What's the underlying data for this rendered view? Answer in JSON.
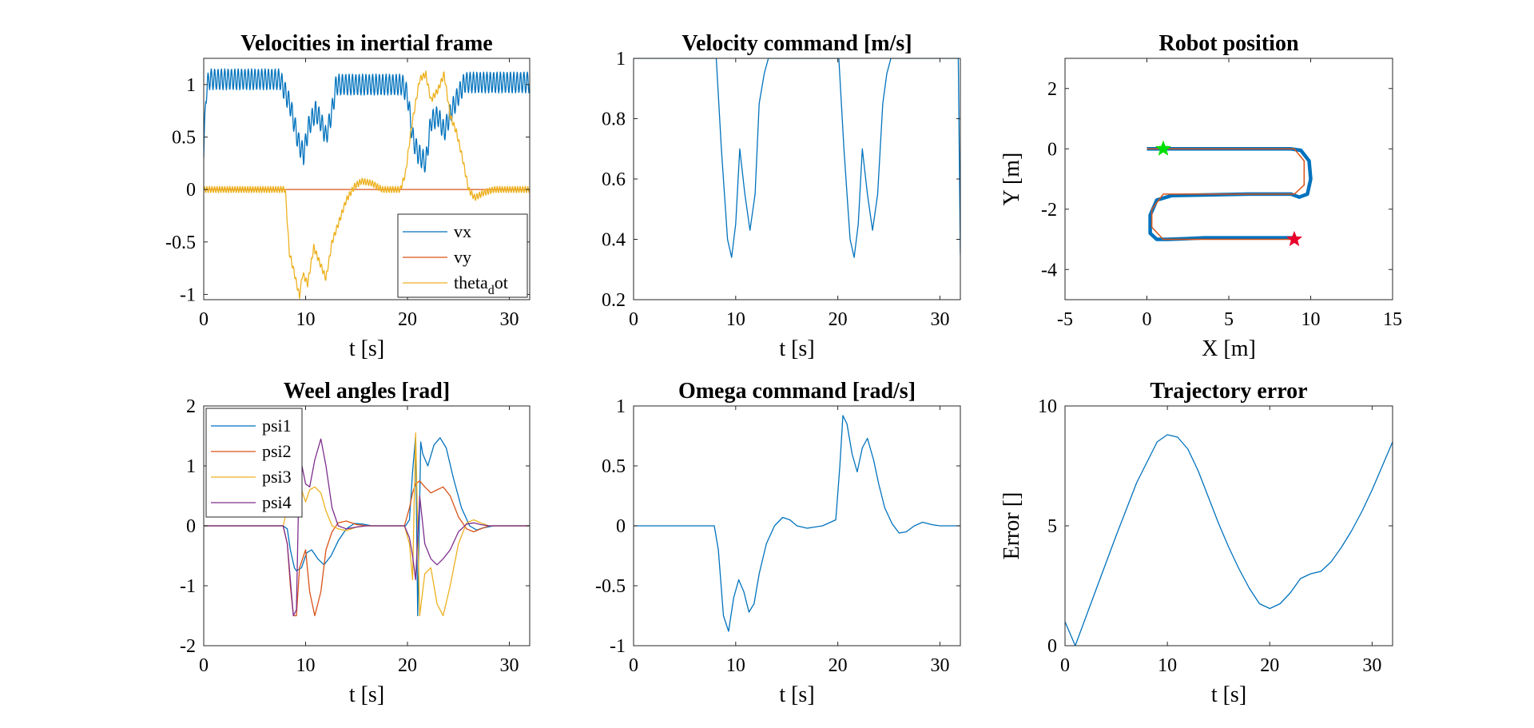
{
  "chart_data": [
    {
      "type": "line",
      "title": "Velocities in inertial frame",
      "xlabel": "t [s]",
      "ylabel": "",
      "xlim": [
        0,
        32
      ],
      "ylim": [
        -1.05,
        1.25
      ],
      "xticks": [
        0,
        10,
        20,
        30
      ],
      "yticks": [
        -1,
        -0.5,
        0,
        0.5,
        1
      ],
      "legend": "bottom-right",
      "colors": {
        "s0": "#0072BD",
        "s1": "#D95319",
        "s2": "#EDB120"
      },
      "series": [
        {
          "name": "vx",
          "legend_label": {
            "main": "vx",
            "sub": ""
          },
          "x": [
            0,
            0.2,
            0.5,
            7.5,
            8.5,
            9.3,
            9.8,
            10.3,
            11,
            11.5,
            12,
            12.6,
            13,
            19.5,
            20,
            20.5,
            21,
            21.8,
            22.3,
            23,
            23.6,
            24.2,
            25,
            25.6,
            32
          ],
          "y": [
            0.3,
            0.9,
            1.05,
            1.05,
            0.8,
            0.45,
            0.33,
            0.6,
            0.75,
            0.65,
            0.5,
            0.75,
            1.0,
            1.0,
            0.9,
            0.5,
            0.35,
            0.25,
            0.65,
            0.7,
            0.55,
            0.72,
            0.9,
            1.02,
            1.02
          ],
          "osc": {
            "amp": 0.1,
            "period": 0.33
          }
        },
        {
          "name": "vy",
          "legend_label": {
            "main": "vy",
            "sub": ""
          },
          "x": [
            0,
            32
          ],
          "y": [
            0,
            0
          ]
        },
        {
          "name": "theta_dot",
          "legend_label": {
            "main": "theta",
            "sub": "d",
            "tail": "ot"
          },
          "x": [
            0,
            8,
            8.4,
            8.9,
            9.4,
            9.7,
            10.2,
            10.8,
            11.4,
            12,
            12.6,
            13.3,
            14,
            14.8,
            15.5,
            16.5,
            17.5,
            19.3,
            19.8,
            20.4,
            21.2,
            21.8,
            22.3,
            23,
            23.6,
            24.2,
            24.8,
            25.4,
            26,
            26.6,
            27.5,
            28.5,
            32
          ],
          "y": [
            0,
            0,
            -0.6,
            -0.8,
            -1.02,
            -0.8,
            -0.9,
            -0.55,
            -0.7,
            -0.85,
            -0.5,
            -0.3,
            -0.1,
            0.03,
            0.08,
            0.06,
            0.0,
            0.0,
            0.15,
            0.6,
            1.05,
            1.1,
            0.85,
            0.95,
            1.1,
            0.7,
            0.55,
            0.3,
            0.0,
            -0.08,
            -0.03,
            0.0,
            0.0
          ],
          "osc": {
            "amp": 0.03,
            "period": 0.25
          }
        }
      ]
    },
    {
      "type": "line",
      "title": "Velocity command [m/s]",
      "xlabel": "t [s]",
      "ylabel": "",
      "xlim": [
        0,
        32
      ],
      "ylim": [
        0.2,
        1.0
      ],
      "xticks": [
        0,
        10,
        20,
        30
      ],
      "yticks": [
        0.2,
        0.4,
        0.6,
        0.8,
        1
      ],
      "colors": {
        "s0": "#0072BD"
      },
      "series": [
        {
          "name": "",
          "x": [
            0,
            8.1,
            8.6,
            9.2,
            9.6,
            10,
            10.4,
            10.9,
            11.4,
            11.9,
            12.3,
            12.8,
            13.2,
            20.1,
            20.6,
            21.2,
            21.6,
            22,
            22.4,
            22.9,
            23.4,
            23.9,
            24.4,
            24.8,
            25.2,
            31.8,
            32
          ],
          "y": [
            1.0,
            1.0,
            0.7,
            0.4,
            0.34,
            0.45,
            0.7,
            0.55,
            0.43,
            0.55,
            0.85,
            0.95,
            1.0,
            1.0,
            0.7,
            0.4,
            0.34,
            0.45,
            0.7,
            0.55,
            0.43,
            0.55,
            0.85,
            0.95,
            1.0,
            1.0,
            0.35
          ]
        }
      ]
    },
    {
      "type": "line",
      "title": "Robot position",
      "xlabel": "X [m]",
      "ylabel": "Y [m]",
      "xlim": [
        -5,
        15
      ],
      "ylim": [
        -5,
        3
      ],
      "xticks": [
        -5,
        0,
        5,
        10,
        15
      ],
      "yticks": [
        -4,
        -2,
        0,
        2
      ],
      "colors": {
        "s0": "#0072BD",
        "s1": "#D95319",
        "start": "#00E000",
        "end": "#E8002B"
      },
      "series": [
        {
          "name": "",
          "x": [
            0,
            8.8,
            9.4,
            9.9,
            10.0,
            9.8,
            9.3,
            8.8,
            6.2,
            1.5,
            0.6,
            0.2,
            0.2,
            0.6,
            1.3,
            2.3,
            3.5,
            9
          ],
          "y": [
            0,
            0,
            -0.05,
            -0.4,
            -1.0,
            -1.5,
            -1.6,
            -1.5,
            -1.5,
            -1.55,
            -1.7,
            -2.2,
            -2.8,
            -3.0,
            -3.0,
            -2.98,
            -2.95,
            -2.95
          ]
        },
        {
          "name": "",
          "x": [
            0,
            9,
            9.6,
            9.6,
            9,
            1,
            0.3,
            0.3,
            1,
            9
          ],
          "y": [
            0,
            0,
            -0.4,
            -1.2,
            -1.5,
            -1.5,
            -2.0,
            -2.6,
            -3.0,
            -3.0
          ]
        }
      ],
      "markers": [
        {
          "name": "start",
          "x": 1,
          "y": 0
        },
        {
          "name": "end",
          "x": 9,
          "y": -3
        }
      ]
    },
    {
      "type": "line",
      "title": "Weel angles [rad]",
      "xlabel": "t [s]",
      "ylabel": "",
      "xlim": [
        0,
        32
      ],
      "ylim": [
        -2,
        2
      ],
      "xticks": [
        0,
        10,
        20,
        30
      ],
      "yticks": [
        -2,
        -1,
        0,
        1,
        2
      ],
      "legend": "top-left",
      "colors": {
        "s0": "#0072BD",
        "s1": "#D95319",
        "s2": "#EDB120",
        "s3": "#7E2F8E"
      },
      "series": [
        {
          "name": "psi1",
          "legend_label": {
            "main": "psi1",
            "sub": ""
          },
          "x": [
            0,
            7.8,
            8.2,
            8.5,
            8.9,
            9.1,
            9.6,
            10.1,
            10.6,
            11.2,
            11.8,
            12.5,
            13.2,
            14.0,
            14.8,
            15.6,
            16.5,
            17.5,
            19.8,
            20.2,
            20.5,
            20.8,
            21.0,
            21.3,
            21.5,
            22.0,
            22.6,
            23.2,
            23.8,
            24.5,
            25.3,
            26.1,
            26.8,
            27.5,
            28.5,
            32
          ],
          "y": [
            0,
            0,
            -0.05,
            -0.4,
            -0.7,
            -0.75,
            -0.7,
            -0.45,
            -0.4,
            -0.55,
            -0.65,
            -0.5,
            -0.25,
            -0.05,
            0.04,
            0.03,
            0,
            0,
            0,
            0.1,
            0.9,
            1.5,
            -1.5,
            1.4,
            1.2,
            1.0,
            1.35,
            1.47,
            1.3,
            0.8,
            0.3,
            0,
            -0.07,
            -0.03,
            0,
            0
          ]
        },
        {
          "name": "psi2",
          "legend_label": {
            "main": "psi2",
            "sub": ""
          },
          "x": [
            0,
            7.8,
            8.2,
            8.5,
            8.8,
            9.1,
            9.4,
            10.0,
            10.4,
            10.9,
            11.5,
            12.0,
            12.6,
            13.2,
            14.0,
            15.0,
            16.0,
            17.0,
            19.7,
            20.2,
            20.5,
            20.8,
            21.2,
            21.7,
            22.3,
            22.9,
            23.5,
            24.2,
            25.0,
            25.8,
            26.5,
            27.2,
            28.0,
            32
          ],
          "y": [
            0,
            0,
            -0.3,
            -1.0,
            -1.5,
            -1.5,
            -0.7,
            -0.4,
            -1.1,
            -1.5,
            -1.1,
            -0.4,
            -0.1,
            0.05,
            0.08,
            0.02,
            0,
            0,
            0,
            0.3,
            0.55,
            0.7,
            0.75,
            0.65,
            0.55,
            0.6,
            0.65,
            0.5,
            0.15,
            -0.05,
            -0.1,
            -0.05,
            0,
            0
          ]
        },
        {
          "name": "psi3",
          "legend_label": {
            "main": "psi3",
            "sub": ""
          },
          "x": [
            0,
            7.8,
            8.2,
            8.5,
            8.8,
            9.1,
            9.4,
            10.0,
            10.4,
            10.9,
            11.5,
            12.0,
            12.6,
            13.2,
            14.0,
            15.0,
            16.0,
            17.0,
            19.7,
            20.2,
            20.5,
            20.8,
            21.2,
            21.7,
            22.3,
            22.9,
            23.5,
            24.2,
            25.0,
            25.8,
            26.5,
            27.2,
            28.0,
            32
          ],
          "y": [
            0,
            0,
            0.3,
            1.0,
            1.5,
            1.5,
            0.7,
            0.4,
            0.6,
            0.65,
            0.55,
            0.25,
            0.0,
            -0.05,
            -0.08,
            -0.02,
            0,
            0,
            0,
            -0.3,
            -0.9,
            1.55,
            -1.5,
            -0.8,
            -0.7,
            -1.3,
            -1.5,
            -1.0,
            -0.3,
            0.05,
            0.1,
            0.05,
            0,
            0
          ]
        },
        {
          "name": "psi4",
          "legend_label": {
            "main": "psi4",
            "sub": ""
          },
          "x": [
            0,
            7.8,
            8.2,
            8.5,
            8.8,
            9.1,
            9.4,
            10.0,
            10.4,
            10.9,
            11.5,
            12.0,
            12.6,
            13.2,
            14.0,
            15.0,
            16.0,
            17.0,
            19.7,
            20.2,
            20.5,
            20.8,
            21.2,
            21.7,
            22.3,
            22.9,
            23.5,
            24.2,
            25.0,
            25.8,
            26.5,
            27.2,
            28.0,
            32
          ],
          "y": [
            0,
            0,
            -0.3,
            -0.9,
            -1.5,
            -1.4,
            1.2,
            0.7,
            0.65,
            1.1,
            1.45,
            1.0,
            0.3,
            0.0,
            -0.05,
            -0.02,
            0,
            0,
            0,
            -0.2,
            -0.5,
            -0.9,
            0.5,
            -0.3,
            -0.55,
            -0.65,
            -0.55,
            -0.4,
            -0.1,
            0.03,
            0.05,
            0.02,
            0,
            0
          ]
        }
      ]
    },
    {
      "type": "line",
      "title": "Omega command [rad/s]",
      "xlabel": "t [s]",
      "ylabel": "",
      "xlim": [
        0,
        32
      ],
      "ylim": [
        -1,
        1
      ],
      "xticks": [
        0,
        10,
        20,
        30
      ],
      "yticks": [
        -1,
        -0.5,
        0,
        0.5,
        1
      ],
      "colors": {
        "s0": "#0072BD"
      },
      "series": [
        {
          "name": "",
          "x": [
            0,
            7.9,
            8.3,
            8.8,
            9.3,
            9.8,
            10.3,
            10.8,
            11.3,
            11.8,
            12.3,
            13.0,
            13.8,
            14.6,
            15.3,
            16.0,
            17.0,
            18.5,
            19.8,
            20.2,
            20.5,
            20.9,
            21.4,
            21.9,
            22.4,
            22.9,
            23.5,
            24.0,
            24.6,
            25.3,
            26.0,
            26.7,
            27.5,
            28.3,
            29.2,
            30.0,
            31.0,
            32
          ],
          "y": [
            0,
            0,
            -0.2,
            -0.75,
            -0.88,
            -0.6,
            -0.45,
            -0.55,
            -0.72,
            -0.65,
            -0.4,
            -0.15,
            0.0,
            0.07,
            0.05,
            0.0,
            -0.02,
            0.0,
            0.05,
            0.5,
            0.92,
            0.85,
            0.6,
            0.45,
            0.65,
            0.73,
            0.55,
            0.35,
            0.15,
            0.02,
            -0.06,
            -0.05,
            0.0,
            0.03,
            0.01,
            0.0,
            0.0,
            0.0
          ]
        }
      ]
    },
    {
      "type": "line",
      "title": "Trajectory error",
      "xlabel": "t [s]",
      "ylabel": "Error []",
      "xlim": [
        0,
        32
      ],
      "ylim": [
        0,
        10
      ],
      "xticks": [
        0,
        10,
        20,
        30
      ],
      "yticks": [
        0,
        5,
        10
      ],
      "colors": {
        "s0": "#0072BD"
      },
      "series": [
        {
          "name": "",
          "x": [
            0,
            1,
            3,
            5,
            7,
            9,
            10,
            11,
            12,
            13,
            14,
            15,
            16,
            17,
            18,
            19,
            20,
            21,
            22,
            23,
            24,
            25,
            26,
            27,
            28,
            29,
            30,
            31,
            32
          ],
          "y": [
            1.0,
            0.0,
            2.3,
            4.6,
            6.8,
            8.5,
            8.8,
            8.7,
            8.2,
            7.3,
            6.2,
            5.1,
            4.1,
            3.2,
            2.4,
            1.75,
            1.55,
            1.75,
            2.2,
            2.8,
            3.0,
            3.1,
            3.5,
            4.1,
            4.8,
            5.6,
            6.5,
            7.5,
            8.5
          ]
        }
      ]
    }
  ]
}
